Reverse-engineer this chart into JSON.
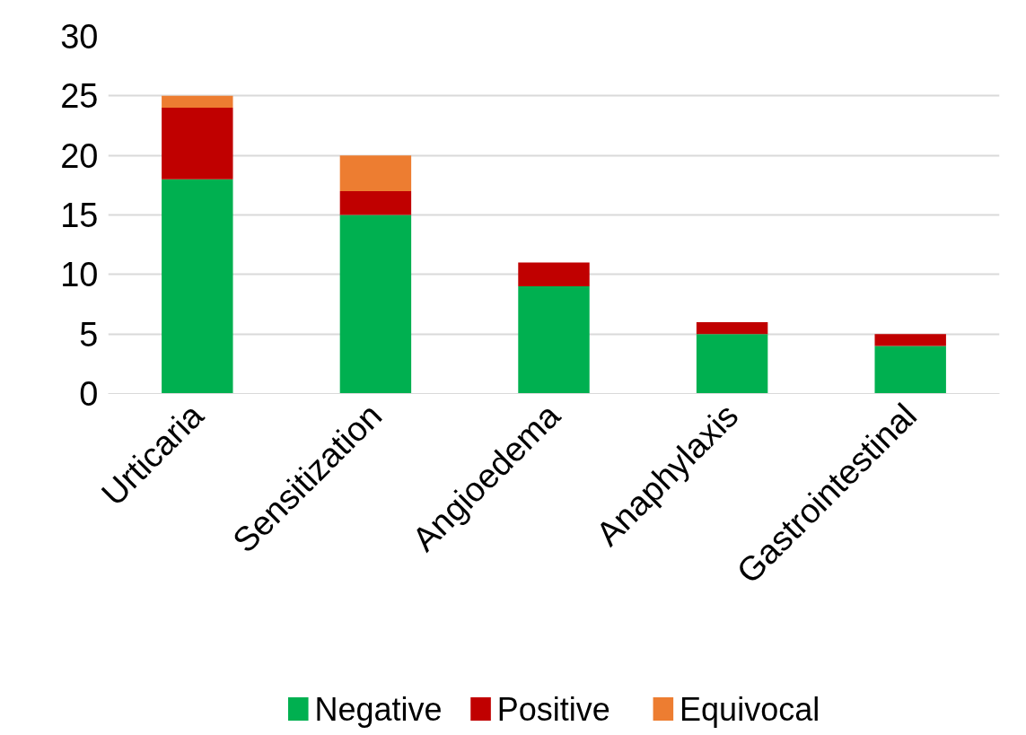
{
  "chart_data": {
    "type": "bar",
    "stacked": true,
    "categories": [
      "Urticaria",
      "Sensitization",
      "Angioedema",
      "Anaphylaxis",
      "Gastrointestinal"
    ],
    "series": [
      {
        "name": "Negative",
        "color": "#00b050",
        "values": [
          18,
          15,
          9,
          5,
          4
        ]
      },
      {
        "name": "Positive",
        "color": "#c00000",
        "values": [
          6,
          2,
          2,
          1,
          1
        ]
      },
      {
        "name": "Equivocal",
        "color": "#ed7d31",
        "values": [
          1,
          3,
          0,
          0,
          0
        ]
      }
    ],
    "ylim": [
      0,
      30
    ],
    "yticks": [
      0,
      5,
      10,
      15,
      20,
      25,
      30
    ],
    "grid": "y",
    "legend": "bottom"
  }
}
